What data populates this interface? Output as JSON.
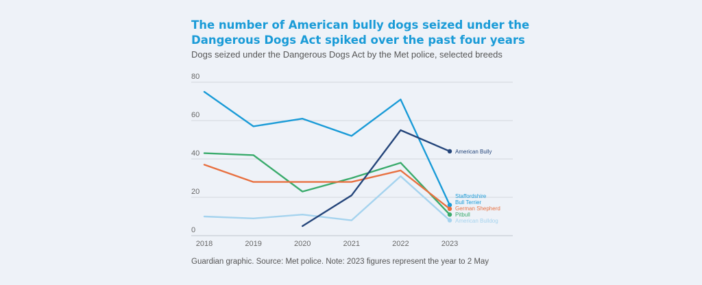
{
  "header": {
    "title": "The number of American bully dogs seized under the Dangerous Dogs Act spiked over the past four years",
    "subtitle": "Dogs seized under the Dangerous Dogs Act by the Met police, selected breeds"
  },
  "footer": {
    "note": "Guardian graphic. Source: Met police. Note: 2023 figures represent the year to 2 May"
  },
  "chart_data": {
    "type": "line",
    "x": [
      "2018",
      "2019",
      "2020",
      "2021",
      "2022",
      "2023"
    ],
    "ylim": [
      0,
      80
    ],
    "yticks": [
      0,
      20,
      40,
      60,
      80
    ],
    "grid": true,
    "legend": "direct labels at line ends",
    "series": [
      {
        "name": "Staffordshire Bull Terrier",
        "label_lines": [
          "Staffordshire",
          "Bull Terrier"
        ],
        "color": "#1a9bd7",
        "values": [
          75,
          57,
          61,
          52,
          71,
          16
        ]
      },
      {
        "name": "Pitbull",
        "label_lines": [
          "Pitbull"
        ],
        "color": "#3aab6c",
        "values": [
          43,
          42,
          23,
          30,
          38,
          11
        ]
      },
      {
        "name": "German Shepherd",
        "label_lines": [
          "German Shepherd"
        ],
        "color": "#e87040",
        "values": [
          37,
          28,
          28,
          28,
          34,
          14
        ]
      },
      {
        "name": "American Bulldog",
        "label_lines": [
          "American Bulldog"
        ],
        "color": "#a5d3ee",
        "values": [
          10,
          9,
          11,
          8,
          31,
          8
        ]
      },
      {
        "name": "American Bully",
        "label_lines": [
          "American Bully"
        ],
        "color": "#24457a",
        "values": [
          null,
          null,
          5,
          21,
          55,
          44
        ]
      }
    ]
  }
}
